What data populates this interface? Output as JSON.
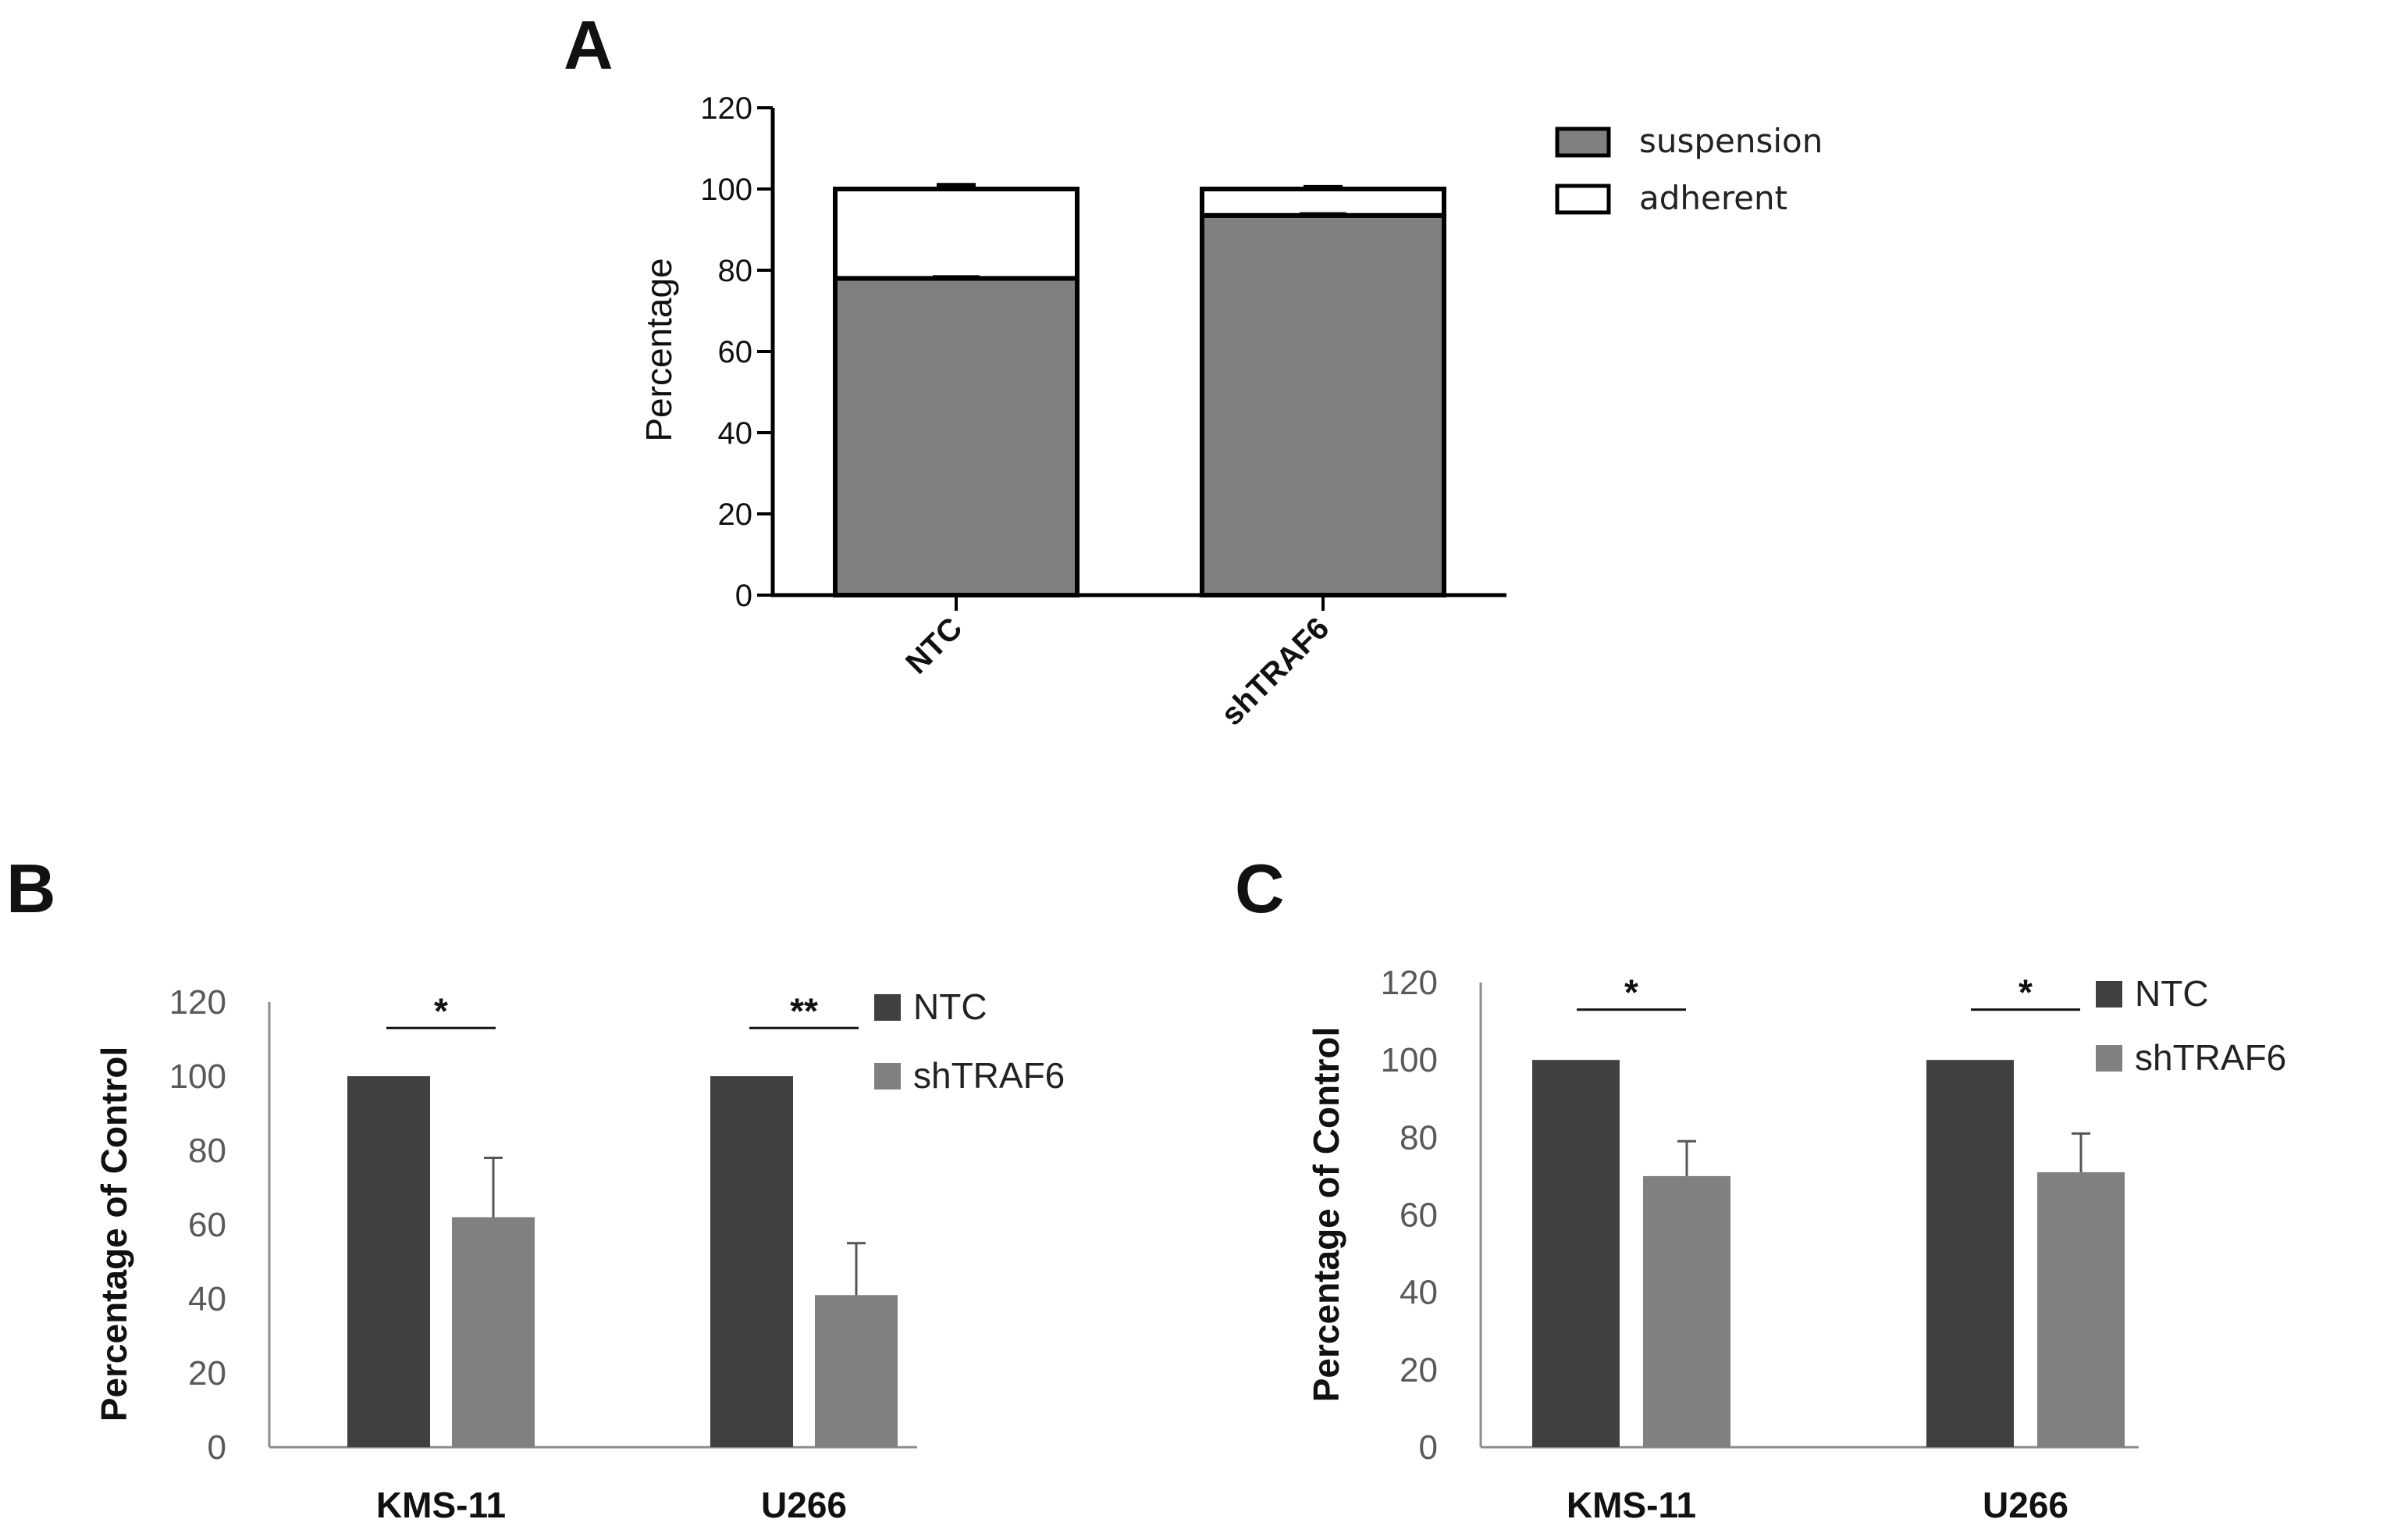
{
  "chart_data": [
    {
      "panel": "A",
      "type": "bar",
      "stacked": true,
      "title": "",
      "xlabel": "",
      "ylabel": "Percentage",
      "ylim": [
        0,
        120
      ],
      "yticks": [
        "0",
        "20",
        "40",
        "60",
        "80",
        "100",
        "120"
      ],
      "categories": [
        "NTC",
        "shTRAF6"
      ],
      "series": [
        {
          "name": "suspension",
          "values": [
            78,
            93.5
          ],
          "color": "#808080"
        },
        {
          "name": "adherent",
          "values": [
            22,
            6.5
          ],
          "color": "#ffffff"
        }
      ],
      "error_top": [
        101,
        100.5
      ],
      "legend_position": "top-right"
    },
    {
      "panel": "B",
      "type": "bar",
      "title": "",
      "xlabel": "",
      "ylabel": "Percentage of Control",
      "ylim": [
        0,
        120
      ],
      "yticks": [
        "0",
        "20",
        "40",
        "60",
        "80",
        "100",
        "120"
      ],
      "categories": [
        "KMS-11",
        "U266"
      ],
      "series": [
        {
          "name": "NTC",
          "values": [
            100,
            100
          ],
          "errors": [
            0,
            0
          ],
          "color": "#404040"
        },
        {
          "name": "shTRAF6",
          "values": [
            62,
            41
          ],
          "errors": [
            16,
            14
          ],
          "color": "#808080"
        }
      ],
      "significance": [
        "*",
        "**"
      ],
      "legend_position": "top-right"
    },
    {
      "panel": "C",
      "type": "bar",
      "title": "",
      "xlabel": "",
      "ylabel": "Percentage of Control",
      "ylim": [
        0,
        120
      ],
      "yticks": [
        "0",
        "20",
        "40",
        "60",
        "80",
        "100",
        "120"
      ],
      "categories": [
        "KMS-11",
        "U266"
      ],
      "series": [
        {
          "name": "NTC",
          "values": [
            100,
            100
          ],
          "errors": [
            0,
            0
          ],
          "color": "#404040"
        },
        {
          "name": "shTRAF6",
          "values": [
            70,
            71
          ],
          "errors": [
            9,
            10
          ],
          "color": "#808080"
        }
      ],
      "significance": [
        "*",
        "*"
      ],
      "legend_position": "top-right"
    }
  ]
}
